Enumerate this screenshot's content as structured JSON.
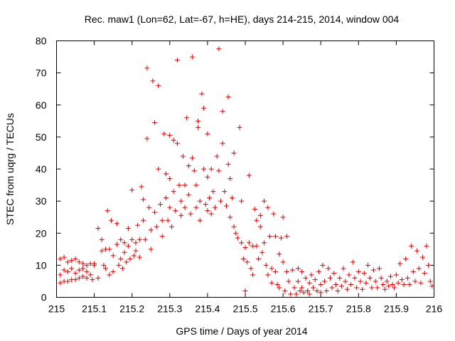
{
  "chart_data": {
    "type": "scatter",
    "title": "Rec. maw1 (Lon=62, Lat=-67, h=HE), days 214-215, 2014, window 004",
    "xlabel": "GPS time / Days of year 2014",
    "ylabel": "STEC from uqrg / TECUs",
    "xlim": [
      215,
      216
    ],
    "ylim": [
      0,
      80
    ],
    "xticks": [
      {
        "value": 215,
        "label": "215"
      },
      {
        "value": 215.1,
        "label": "215.1"
      },
      {
        "value": 215.2,
        "label": "215.2"
      },
      {
        "value": 215.3,
        "label": "215.3"
      },
      {
        "value": 215.4,
        "label": "215.4"
      },
      {
        "value": 215.5,
        "label": "215.5"
      },
      {
        "value": 215.6,
        "label": "215.6"
      },
      {
        "value": 215.7,
        "label": "215.7"
      },
      {
        "value": 215.8,
        "label": "215.8"
      },
      {
        "value": 215.9,
        "label": "215.9"
      },
      {
        "value": 216,
        "label": "216"
      }
    ],
    "yticks": [
      {
        "value": 0,
        "label": "0"
      },
      {
        "value": 10,
        "label": "10"
      },
      {
        "value": 20,
        "label": "20"
      },
      {
        "value": 30,
        "label": "30"
      },
      {
        "value": 40,
        "label": "40"
      },
      {
        "value": 50,
        "label": "50"
      },
      {
        "value": 60,
        "label": "60"
      },
      {
        "value": 70,
        "label": "70"
      },
      {
        "value": 80,
        "label": "80"
      }
    ],
    "marker": "+",
    "color": "#e00000",
    "series": [
      {
        "name": "STEC",
        "points": [
          [
            215.01,
            12
          ],
          [
            215.01,
            7
          ],
          [
            215.01,
            4.5
          ],
          [
            215.02,
            12.5
          ],
          [
            215.02,
            8.5
          ],
          [
            215.02,
            5
          ],
          [
            215.03,
            11
          ],
          [
            215.03,
            8
          ],
          [
            215.03,
            5
          ],
          [
            215.04,
            11.5
          ],
          [
            215.04,
            9
          ],
          [
            215.04,
            5.5
          ],
          [
            215.05,
            12
          ],
          [
            215.05,
            7.5
          ],
          [
            215.05,
            5.5
          ],
          [
            215.06,
            11
          ],
          [
            215.06,
            8.5
          ],
          [
            215.06,
            6
          ],
          [
            215.07,
            10.5
          ],
          [
            215.07,
            9
          ],
          [
            215.07,
            6.5
          ],
          [
            215.08,
            10
          ],
          [
            215.08,
            8
          ],
          [
            215.08,
            6
          ],
          [
            215.09,
            10.5
          ],
          [
            215.09,
            7
          ],
          [
            215.095,
            5.5
          ],
          [
            215.1,
            10.5
          ],
          [
            215.1,
            10
          ],
          [
            215.11,
            21.5
          ],
          [
            215.11,
            6
          ],
          [
            215.12,
            18
          ],
          [
            215.12,
            14.5
          ],
          [
            215.125,
            10
          ],
          [
            215.13,
            15
          ],
          [
            215.13,
            9
          ],
          [
            215.135,
            27
          ],
          [
            215.14,
            15
          ],
          [
            215.14,
            7
          ],
          [
            215.145,
            24
          ],
          [
            215.15,
            13
          ],
          [
            215.15,
            8
          ],
          [
            215.16,
            23
          ],
          [
            215.16,
            16.5
          ],
          [
            215.165,
            10
          ],
          [
            215.17,
            18
          ],
          [
            215.17,
            12
          ],
          [
            215.175,
            9
          ],
          [
            215.18,
            17
          ],
          [
            215.18,
            14
          ],
          [
            215.185,
            11
          ],
          [
            215.19,
            21.5
          ],
          [
            215.19,
            16
          ],
          [
            215.195,
            12
          ],
          [
            215.2,
            33.5
          ],
          [
            215.2,
            18
          ],
          [
            215.205,
            13
          ],
          [
            215.21,
            17
          ],
          [
            215.21,
            14.5
          ],
          [
            215.215,
            22.5
          ],
          [
            215.22,
            18
          ],
          [
            215.22,
            12.5
          ],
          [
            215.225,
            34.5
          ],
          [
            215.23,
            30.5
          ],
          [
            215.23,
            24
          ],
          [
            215.235,
            18
          ],
          [
            215.24,
            71.5
          ],
          [
            215.24,
            49.5
          ],
          [
            215.245,
            28
          ],
          [
            215.25,
            21
          ],
          [
            215.25,
            15
          ],
          [
            215.255,
            67.5
          ],
          [
            215.26,
            54.5
          ],
          [
            215.26,
            26.5
          ],
          [
            215.265,
            22
          ],
          [
            215.27,
            66
          ],
          [
            215.27,
            40
          ],
          [
            215.275,
            29
          ],
          [
            215.28,
            24
          ],
          [
            215.28,
            19
          ],
          [
            215.285,
            51
          ],
          [
            215.29,
            38.5
          ],
          [
            215.29,
            31
          ],
          [
            215.295,
            24
          ],
          [
            215.3,
            50.5
          ],
          [
            215.3,
            37
          ],
          [
            215.3,
            28
          ],
          [
            215.305,
            22
          ],
          [
            215.31,
            49
          ],
          [
            215.31,
            33
          ],
          [
            215.315,
            27
          ],
          [
            215.32,
            74
          ],
          [
            215.32,
            48
          ],
          [
            215.325,
            35
          ],
          [
            215.33,
            30
          ],
          [
            215.33,
            25.5
          ],
          [
            215.335,
            44
          ],
          [
            215.34,
            35
          ],
          [
            215.34,
            28
          ],
          [
            215.345,
            56
          ],
          [
            215.35,
            41
          ],
          [
            215.35,
            32
          ],
          [
            215.355,
            26
          ],
          [
            215.36,
            75
          ],
          [
            215.36,
            43.5
          ],
          [
            215.365,
            39.5
          ],
          [
            215.37,
            35
          ],
          [
            215.37,
            28
          ],
          [
            215.375,
            55
          ],
          [
            215.375,
            53
          ],
          [
            215.38,
            30
          ],
          [
            215.38,
            24
          ],
          [
            215.385,
            63.5
          ],
          [
            215.39,
            59
          ],
          [
            215.39,
            40
          ],
          [
            215.395,
            29
          ],
          [
            215.4,
            51
          ],
          [
            215.4,
            37.5
          ],
          [
            215.4,
            27
          ],
          [
            215.405,
            31
          ],
          [
            215.41,
            40
          ],
          [
            215.41,
            26
          ],
          [
            215.415,
            33
          ],
          [
            215.42,
            28
          ],
          [
            215.425,
            44
          ],
          [
            215.43,
            77.5
          ],
          [
            215.43,
            39.5
          ],
          [
            215.435,
            30
          ],
          [
            215.44,
            58
          ],
          [
            215.44,
            48
          ],
          [
            215.445,
            33
          ],
          [
            215.45,
            28.5
          ],
          [
            215.455,
            62.5
          ],
          [
            215.455,
            41.5
          ],
          [
            215.46,
            37
          ],
          [
            215.46,
            25
          ],
          [
            215.465,
            31
          ],
          [
            215.47,
            45
          ],
          [
            215.47,
            22
          ],
          [
            215.475,
            20
          ],
          [
            215.48,
            18.5
          ],
          [
            215.485,
            53
          ],
          [
            215.49,
            30
          ],
          [
            215.49,
            17
          ],
          [
            215.495,
            12
          ],
          [
            215.5,
            2
          ],
          [
            215.5,
            15.5
          ],
          [
            215.505,
            11
          ],
          [
            215.51,
            38
          ],
          [
            215.51,
            17
          ],
          [
            215.515,
            9
          ],
          [
            215.52,
            16
          ],
          [
            215.52,
            7
          ],
          [
            215.525,
            27.5
          ],
          [
            215.53,
            24
          ],
          [
            215.53,
            16
          ],
          [
            215.535,
            12
          ],
          [
            215.54,
            25.5
          ],
          [
            215.54,
            22
          ],
          [
            215.545,
            14
          ],
          [
            215.55,
            30
          ],
          [
            215.55,
            17
          ],
          [
            215.555,
            10
          ],
          [
            215.56,
            28
          ],
          [
            215.56,
            7
          ],
          [
            215.565,
            19
          ],
          [
            215.57,
            9
          ],
          [
            215.57,
            4.5
          ],
          [
            215.575,
            26
          ],
          [
            215.58,
            19
          ],
          [
            215.58,
            8
          ],
          [
            215.585,
            4
          ],
          [
            215.59,
            13.5
          ],
          [
            215.59,
            3
          ],
          [
            215.595,
            18.5
          ],
          [
            215.6,
            25
          ],
          [
            215.6,
            11
          ],
          [
            215.605,
            2
          ],
          [
            215.61,
            19
          ],
          [
            215.61,
            8
          ],
          [
            215.615,
            5
          ],
          [
            215.62,
            1
          ],
          [
            215.625,
            8.5
          ],
          [
            215.63,
            3
          ],
          [
            215.635,
            1
          ],
          [
            215.64,
            9
          ],
          [
            215.64,
            5
          ],
          [
            215.645,
            2
          ],
          [
            215.65,
            8
          ],
          [
            215.65,
            3
          ],
          [
            215.655,
            1.5
          ],
          [
            215.66,
            6
          ],
          [
            215.665,
            2
          ],
          [
            215.67,
            4.5
          ],
          [
            215.67,
            1
          ],
          [
            215.675,
            7
          ],
          [
            215.68,
            3
          ],
          [
            215.685,
            5.5
          ],
          [
            215.69,
            2
          ],
          [
            215.695,
            8
          ],
          [
            215.7,
            4
          ],
          [
            215.7,
            1.5
          ],
          [
            215.705,
            10
          ],
          [
            215.71,
            5
          ],
          [
            215.715,
            2
          ],
          [
            215.72,
            9
          ],
          [
            215.725,
            6
          ],
          [
            215.73,
            3
          ],
          [
            215.735,
            7.5
          ],
          [
            215.74,
            4
          ],
          [
            215.745,
            2
          ],
          [
            215.75,
            6
          ],
          [
            215.755,
            3.5
          ],
          [
            215.76,
            9
          ],
          [
            215.765,
            5
          ],
          [
            215.77,
            2.5
          ],
          [
            215.775,
            7
          ],
          [
            215.78,
            4
          ],
          [
            215.785,
            11
          ],
          [
            215.79,
            6
          ],
          [
            215.795,
            3
          ],
          [
            215.8,
            8
          ],
          [
            215.805,
            5
          ],
          [
            215.81,
            2.5
          ],
          [
            215.815,
            7.5
          ],
          [
            215.82,
            4.5
          ],
          [
            215.825,
            10
          ],
          [
            215.83,
            6
          ],
          [
            215.835,
            3
          ],
          [
            215.84,
            8.5
          ],
          [
            215.845,
            5
          ],
          [
            215.85,
            3
          ],
          [
            215.855,
            9
          ],
          [
            215.86,
            6
          ],
          [
            215.865,
            4
          ],
          [
            215.87,
            2.5
          ],
          [
            215.875,
            5
          ],
          [
            215.88,
            3.5
          ],
          [
            215.885,
            6.5
          ],
          [
            215.89,
            4
          ],
          [
            215.895,
            3
          ],
          [
            215.9,
            7
          ],
          [
            215.905,
            4.5
          ],
          [
            215.91,
            10.5
          ],
          [
            215.915,
            5.5
          ],
          [
            215.92,
            4
          ],
          [
            215.925,
            12
          ],
          [
            215.93,
            6
          ],
          [
            215.935,
            4
          ],
          [
            215.94,
            16
          ],
          [
            215.945,
            8
          ],
          [
            215.95,
            5
          ],
          [
            215.955,
            14.5
          ],
          [
            215.96,
            9
          ],
          [
            215.965,
            4.5
          ],
          [
            215.97,
            12.5
          ],
          [
            215.975,
            7.5
          ],
          [
            215.98,
            16
          ],
          [
            215.985,
            10
          ],
          [
            215.99,
            5
          ],
          [
            215.995,
            3.5
          ]
        ]
      }
    ]
  }
}
